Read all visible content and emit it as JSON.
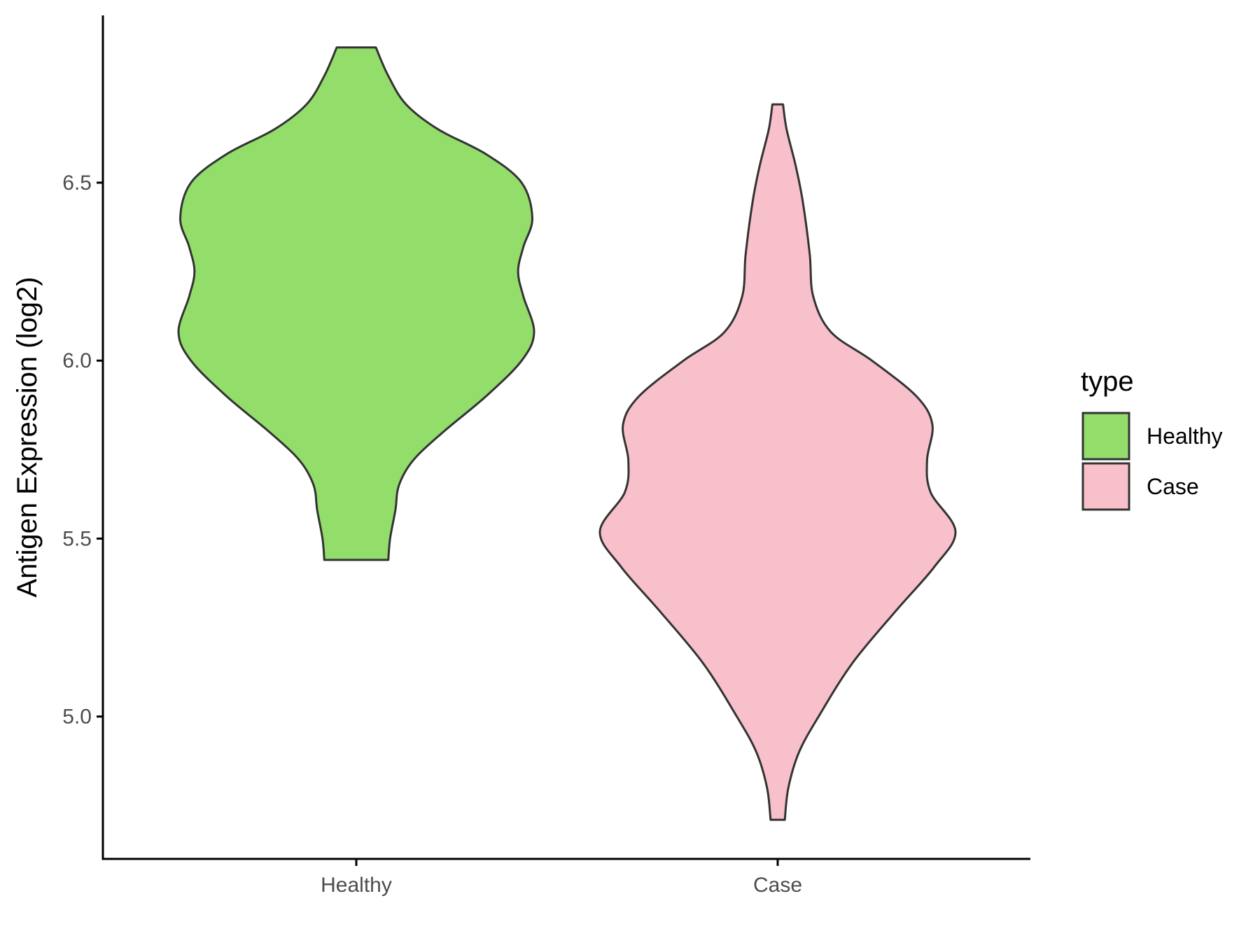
{
  "chart_data": {
    "type": "violin",
    "ylabel": "Antigen Expression (log2)",
    "xlabel": "",
    "ylim": [
      4.6,
      6.97
    ],
    "yticks": [
      5.0,
      5.5,
      6.0,
      6.5
    ],
    "ytick_labels": [
      "5.0",
      "5.5",
      "6.0",
      "6.5"
    ],
    "categories": [
      "Healthy",
      "Case"
    ],
    "legend": {
      "title": "type",
      "position": "right",
      "entries": [
        "Healthy",
        "Case"
      ]
    },
    "series": [
      {
        "name": "Healthy",
        "color": "#93dd6b",
        "min": 5.44,
        "max": 6.88,
        "profile": [
          [
            6.88,
            0.11
          ],
          [
            6.8,
            0.18
          ],
          [
            6.72,
            0.28
          ],
          [
            6.65,
            0.46
          ],
          [
            6.58,
            0.73
          ],
          [
            6.5,
            0.93
          ],
          [
            6.4,
            0.99
          ],
          [
            6.32,
            0.94
          ],
          [
            6.25,
            0.91
          ],
          [
            6.18,
            0.94
          ],
          [
            6.08,
            1.0
          ],
          [
            6.0,
            0.93
          ],
          [
            5.9,
            0.73
          ],
          [
            5.8,
            0.49
          ],
          [
            5.72,
            0.32
          ],
          [
            5.65,
            0.24
          ],
          [
            5.58,
            0.22
          ],
          [
            5.5,
            0.19
          ],
          [
            5.44,
            0.18
          ]
        ]
      },
      {
        "name": "Case",
        "color": "#f8c0cb",
        "min": 4.71,
        "max": 6.72,
        "profile": [
          [
            6.72,
            0.03
          ],
          [
            6.65,
            0.05
          ],
          [
            6.55,
            0.1
          ],
          [
            6.45,
            0.14
          ],
          [
            6.3,
            0.18
          ],
          [
            6.18,
            0.2
          ],
          [
            6.08,
            0.3
          ],
          [
            6.0,
            0.53
          ],
          [
            5.9,
            0.78
          ],
          [
            5.82,
            0.87
          ],
          [
            5.72,
            0.84
          ],
          [
            5.63,
            0.86
          ],
          [
            5.52,
            1.0
          ],
          [
            5.42,
            0.88
          ],
          [
            5.3,
            0.67
          ],
          [
            5.15,
            0.42
          ],
          [
            5.0,
            0.23
          ],
          [
            4.9,
            0.12
          ],
          [
            4.8,
            0.06
          ],
          [
            4.71,
            0.04
          ]
        ]
      }
    ]
  },
  "style": {
    "outline_color": "#333333",
    "axis_color": "#000000",
    "background": "#ffffff"
  }
}
